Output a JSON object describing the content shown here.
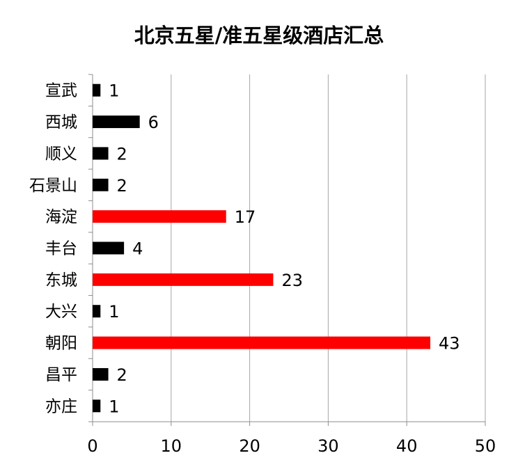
{
  "chart_data": {
    "type": "bar",
    "orientation": "horizontal",
    "title": "北京五星/准五星级酒店汇总",
    "xlabel": "",
    "ylabel": "",
    "xlim": [
      0,
      50
    ],
    "x_ticks": [
      0,
      10,
      20,
      30,
      40,
      50
    ],
    "grid": "vertical",
    "legend": "none",
    "categories": [
      "宣武",
      "西城",
      "顺义",
      "石景山",
      "海淀",
      "丰台",
      "东城",
      "大兴",
      "朝阳",
      "昌平",
      "亦庄"
    ],
    "values": [
      1,
      6,
      2,
      2,
      17,
      4,
      23,
      1,
      43,
      2,
      1
    ],
    "bar_colors": [
      "#000000",
      "#000000",
      "#000000",
      "#000000",
      "#ff0000",
      "#000000",
      "#ff0000",
      "#000000",
      "#ff0000",
      "#000000",
      "#000000"
    ],
    "grid_color": "#a6a6a6",
    "axis_color": "#8c8c8c"
  }
}
